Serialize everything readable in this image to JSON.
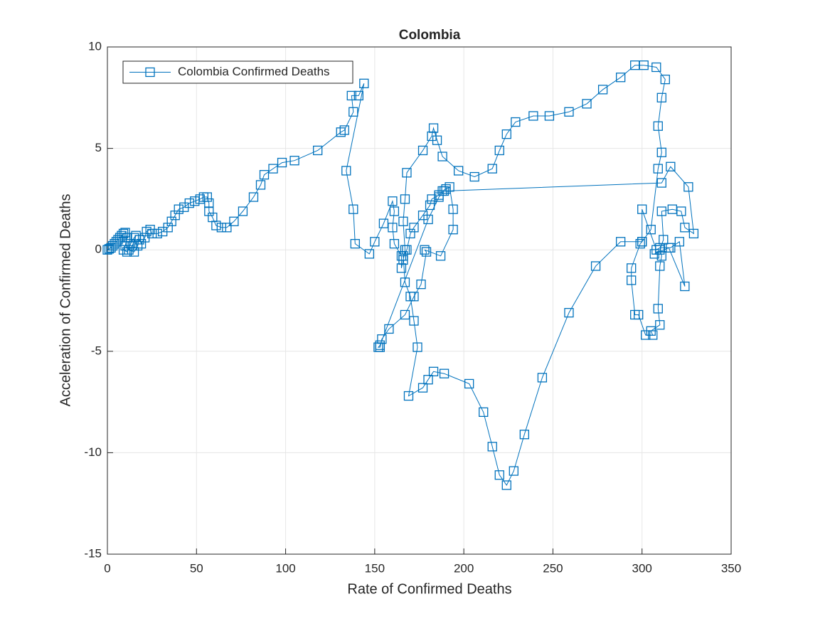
{
  "chart_data": {
    "type": "line",
    "title": "Colombia",
    "x_label": "Rate of Confirmed Deaths",
    "y_label": "Acceleration of Confirmed Deaths",
    "xlim": [
      0,
      350
    ],
    "xticks": [
      0,
      50,
      100,
      150,
      200,
      250,
      300,
      350
    ],
    "ylim": [
      -15,
      10
    ],
    "yticks": [
      -15,
      -10,
      -5,
      0,
      5,
      10
    ],
    "grid": true,
    "legend": "upper left",
    "marker": "square",
    "series": [
      {
        "name": "Colombia Confirmed Deaths",
        "color": "#0072bd",
        "x": [
          0,
          1,
          2,
          3,
          4,
          5,
          6,
          7,
          8,
          9,
          10,
          11,
          10,
          9,
          11,
          13,
          15,
          16,
          14,
          12,
          15,
          17,
          18,
          19,
          21,
          22,
          24,
          25,
          28,
          31,
          34,
          36,
          38,
          40,
          43,
          46,
          49,
          52,
          54,
          56,
          57,
          57,
          59,
          61,
          64,
          67,
          71,
          76,
          82,
          86,
          88,
          93,
          98,
          105,
          118,
          131,
          133,
          138,
          137,
          141,
          144,
          134,
          138,
          139,
          147,
          150,
          155,
          160,
          161,
          160,
          161,
          165,
          165,
          166,
          167,
          166,
          167,
          168,
          177,
          182,
          183,
          185,
          188,
          197,
          206,
          216,
          220,
          224,
          229,
          239,
          248,
          259,
          269,
          278,
          288,
          296,
          301,
          308,
          313,
          311,
          309,
          311,
          309,
          305,
          300,
          288,
          274,
          259,
          244,
          234,
          228,
          224,
          220,
          216,
          211,
          203,
          189,
          183,
          180,
          177,
          169,
          174,
          172,
          170,
          167,
          166,
          168,
          170,
          172,
          177,
          181,
          182,
          186,
          188,
          190,
          192,
          194,
          194,
          187,
          178,
          179,
          176,
          172,
          167,
          158,
          154,
          153,
          152,
          153,
          180,
          186,
          189,
          311,
          316,
          326,
          329,
          324,
          322,
          317,
          311,
          312,
          310,
          311,
          310,
          309,
          310,
          305,
          306,
          302,
          298,
          296,
          294,
          294,
          299,
          300,
          300,
          308,
          310,
          316,
          321,
          324,
          315,
          307
        ],
        "values": [
          0,
          0.05,
          0.1,
          0.2,
          0.3,
          0.4,
          0.5,
          0.6,
          0.7,
          0.8,
          0.85,
          0.6,
          0.2,
          0,
          -0.1,
          0.3,
          0.6,
          0.7,
          0.2,
          0,
          -0.1,
          0.2,
          0.5,
          0.3,
          0.6,
          0.9,
          1.0,
          0.8,
          0.8,
          0.9,
          1.1,
          1.4,
          1.7,
          2.0,
          2.1,
          2.3,
          2.4,
          2.5,
          2.6,
          2.6,
          2.3,
          1.9,
          1.6,
          1.2,
          1.1,
          1.1,
          1.4,
          1.9,
          2.6,
          3.2,
          3.7,
          4.0,
          4.3,
          4.4,
          4.9,
          5.8,
          5.9,
          6.8,
          7.6,
          7.6,
          8.2,
          3.9,
          2.0,
          0.3,
          -0.2,
          0.4,
          1.3,
          2.4,
          1.9,
          1.1,
          0.3,
          -0.3,
          -0.9,
          -0.5,
          0,
          1.4,
          2.5,
          3.8,
          4.9,
          5.6,
          6.0,
          5.4,
          4.6,
          3.9,
          3.6,
          4.0,
          4.9,
          5.7,
          6.3,
          6.6,
          6.6,
          6.8,
          7.2,
          7.9,
          8.5,
          9.1,
          9.1,
          9.0,
          8.4,
          7.5,
          6.1,
          4.8,
          4.0,
          1.0,
          0.4,
          0.4,
          -0.8,
          -3.1,
          -6.3,
          -9.1,
          -10.9,
          -11.6,
          -11.1,
          -9.7,
          -8.0,
          -6.6,
          -6.1,
          -6.0,
          -6.4,
          -6.8,
          -7.2,
          -4.8,
          -3.5,
          -2.3,
          -1.6,
          -0.3,
          0,
          0.8,
          1.1,
          1.7,
          2.2,
          2.5,
          2.7,
          2.9,
          3.0,
          3.1,
          2.0,
          1.0,
          -0.3,
          0,
          -0.1,
          -1.7,
          -2.3,
          -3.2,
          -3.9,
          -4.4,
          -4.8,
          -4.8,
          -4.7,
          1.5,
          2.6,
          2.9,
          3.3,
          4.1,
          3.1,
          0.8,
          1.1,
          1.9,
          2.0,
          1.9,
          0.5,
          0,
          -0.3,
          -0.8,
          -2.9,
          -3.7,
          -4.0,
          -4.2,
          -4.2,
          -3.2,
          -3.2,
          -1.5,
          -0.9,
          0.3,
          0.4,
          2.0,
          0,
          0.1,
          0.1,
          0.4,
          -1.8,
          0.1,
          -0.2
        ]
      }
    ]
  }
}
